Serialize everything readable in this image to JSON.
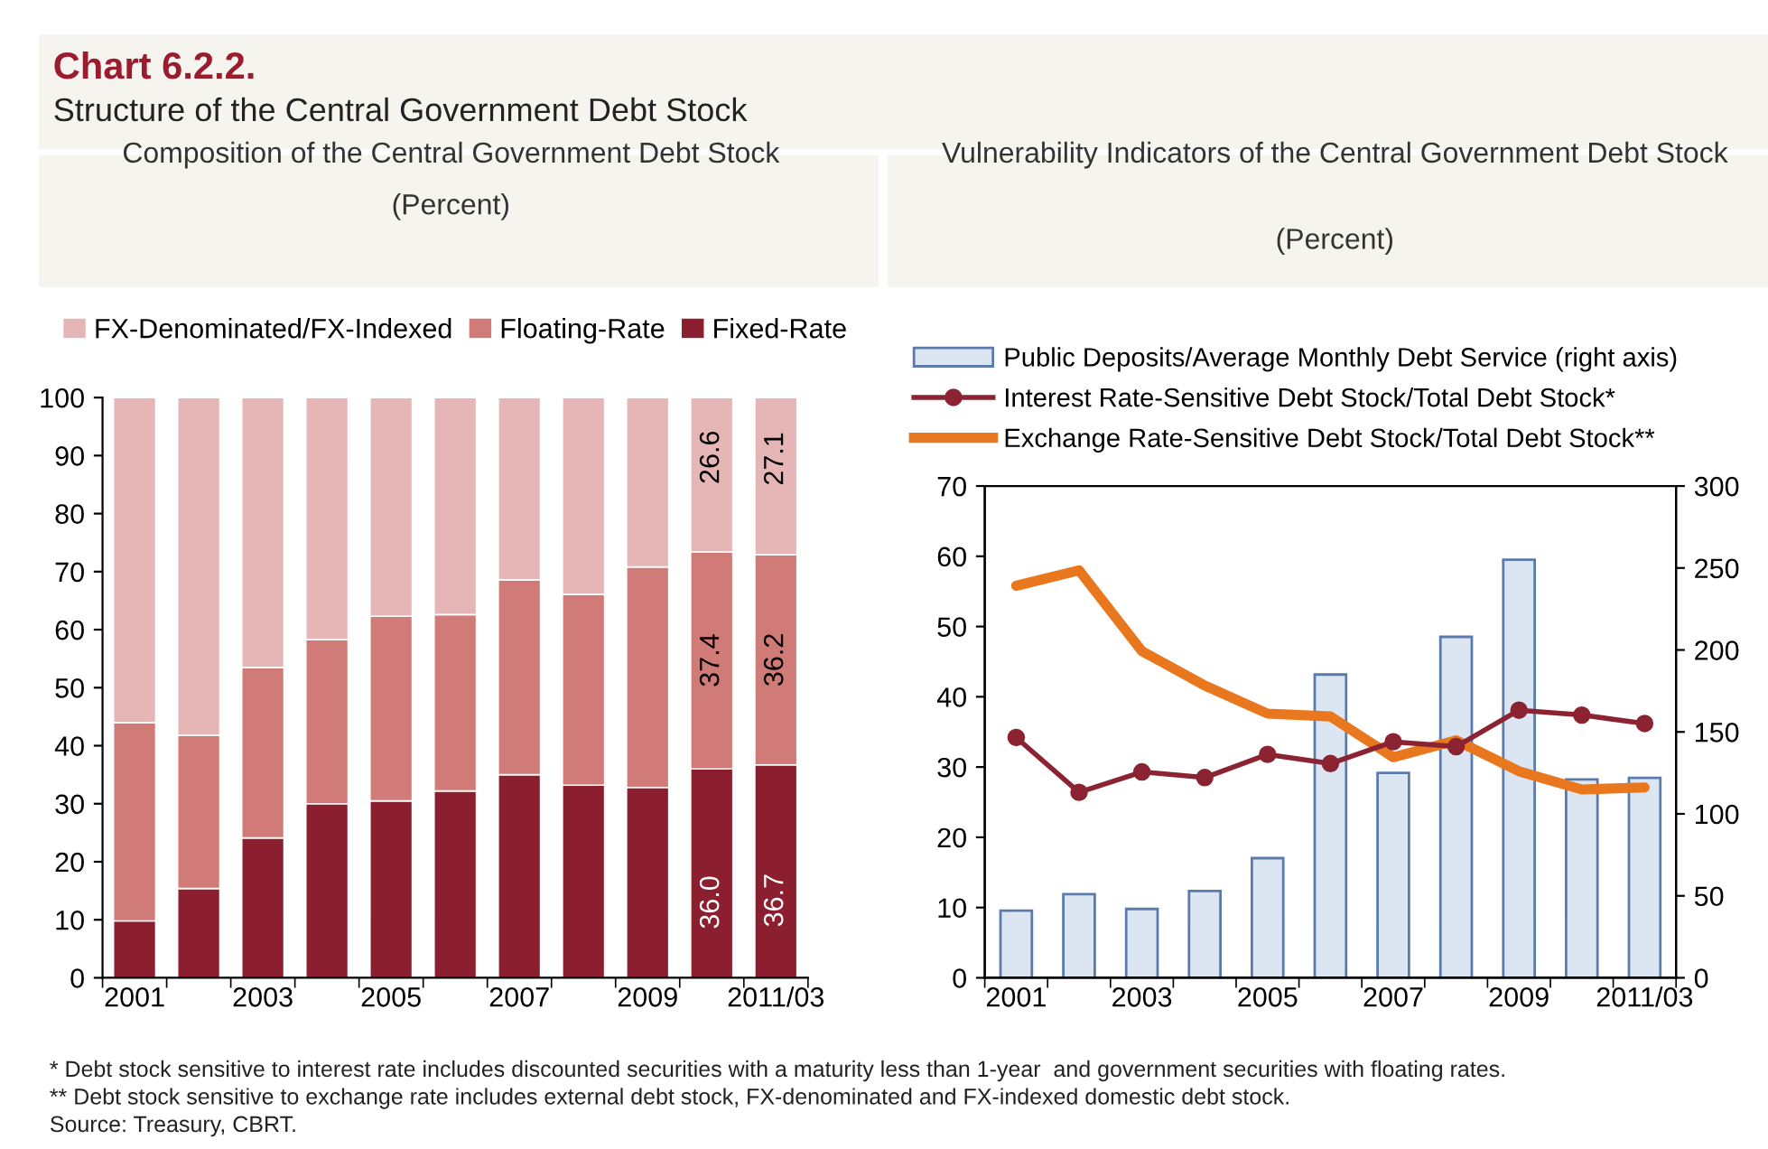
{
  "chart_data": [
    {
      "type": "bar",
      "stacked": true,
      "title": "Composition of the Central Government Debt Stock",
      "subtitle": "(Percent)",
      "annotations": [
        "Chart 6.2.2.",
        "Structure of the Central Government Debt Stock"
      ],
      "categories": [
        "2001",
        null,
        "2003",
        null,
        "2005",
        null,
        "2007",
        null,
        "2009",
        null,
        "2011/03"
      ],
      "series": [
        {
          "name": "Fixed-Rate",
          "color": "#8b1e2f",
          "values": [
            9.8,
            15.4,
            24.1,
            30.0,
            30.5,
            32.2,
            35.0,
            33.2,
            32.8,
            36.0,
            36.7
          ],
          "value_labels": [
            null,
            null,
            null,
            null,
            null,
            null,
            null,
            null,
            null,
            "36.0",
            "36.7"
          ]
        },
        {
          "name": "Floating-Rate",
          "color": "#d07b78",
          "values": [
            34.2,
            26.4,
            29.4,
            28.3,
            31.8,
            30.4,
            33.6,
            32.9,
            38.0,
            37.4,
            36.2
          ],
          "value_labels": [
            null,
            null,
            null,
            null,
            null,
            null,
            null,
            null,
            null,
            "37.4",
            "36.2"
          ]
        },
        {
          "name": "FX-Denominated/FX-Indexed",
          "color": "#e6b6b6",
          "values": [
            56.0,
            58.2,
            46.5,
            41.7,
            37.7,
            37.4,
            31.4,
            33.9,
            29.2,
            26.6,
            27.1
          ],
          "value_labels": [
            null,
            null,
            null,
            null,
            null,
            null,
            null,
            null,
            null,
            "26.6",
            "27.1"
          ]
        }
      ],
      "ylim": [
        0,
        100
      ],
      "yticks": [
        0,
        10,
        20,
        30,
        40,
        50,
        60,
        70,
        80,
        90,
        100
      ],
      "grid": false,
      "legend": "top"
    },
    {
      "type": "line",
      "title": "Vulnerability Indicators of the Central Government Debt Stock",
      "subtitle": "(Percent)",
      "annotations": [
        "* Debt stock sensitive to interest rate includes discounted securities with a maturity less than 1-year  and government securities with floating rates.",
        "** Debt stock sensitive to exchange rate includes external debt stock, FX-denominated and FX-indexed domestic debt stock.",
        "Source: Treasury, CBRT."
      ],
      "categories": [
        "2001",
        null,
        "2003",
        null,
        "2005",
        null,
        "2007",
        null,
        "2009",
        null,
        "2011/03"
      ],
      "series": [
        {
          "name": "Public Deposits/Average Monthly Debt Service (right axis)",
          "type": "bar",
          "axis": "y2",
          "color": "#dce6f2",
          "values": [
            41,
            51,
            42,
            53,
            73,
            185,
            125,
            208,
            255,
            121,
            122
          ]
        },
        {
          "name": "Interest Rate-Sensitive Debt Stock/Total Debt Stock*",
          "type": "line",
          "marker": "circle",
          "color": "#8b2332",
          "values": [
            34.2,
            26.4,
            29.3,
            28.5,
            31.8,
            30.5,
            33.6,
            32.9,
            38.1,
            37.4,
            36.2
          ]
        },
        {
          "name": "Exchange Rate-Sensitive Debt Stock/Total Debt Stock**",
          "type": "line",
          "marker": "none",
          "color": "#e8771e",
          "values": [
            55.8,
            58.0,
            46.5,
            41.6,
            37.6,
            37.2,
            31.4,
            33.8,
            29.4,
            26.8,
            27.1
          ]
        }
      ],
      "ylim": [
        0,
        70
      ],
      "yticks": [
        0,
        10,
        20,
        30,
        40,
        50,
        60,
        70
      ],
      "y2lim": [
        0,
        300
      ],
      "y2ticks": [
        0,
        50,
        100,
        150,
        200,
        250,
        300
      ],
      "grid": false,
      "legend": "top"
    }
  ]
}
